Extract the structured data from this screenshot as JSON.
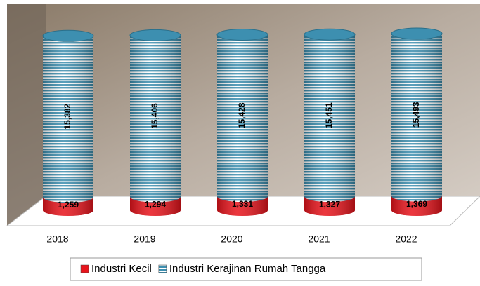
{
  "chart_data": {
    "type": "bar",
    "stacked": true,
    "shape": "cylinder",
    "categories": [
      "2018",
      "2019",
      "2020",
      "2021",
      "2022"
    ],
    "series": [
      {
        "name": "Industri Kecil",
        "color": "#e8141c",
        "values": [
          1259,
          1294,
          1331,
          1327,
          1369
        ],
        "value_labels": [
          "1,259",
          "1,294",
          "1,331",
          "1,327",
          "1,369"
        ]
      },
      {
        "name": "Industri Kerajinan Rumah Tangga",
        "color": "#3d8fb0",
        "values": [
          15382,
          15406,
          15428,
          15451,
          15493
        ],
        "value_labels": [
          "15,382",
          "15,406",
          "15,428",
          "15,451",
          "15,493"
        ]
      }
    ],
    "legend": "bottom"
  }
}
